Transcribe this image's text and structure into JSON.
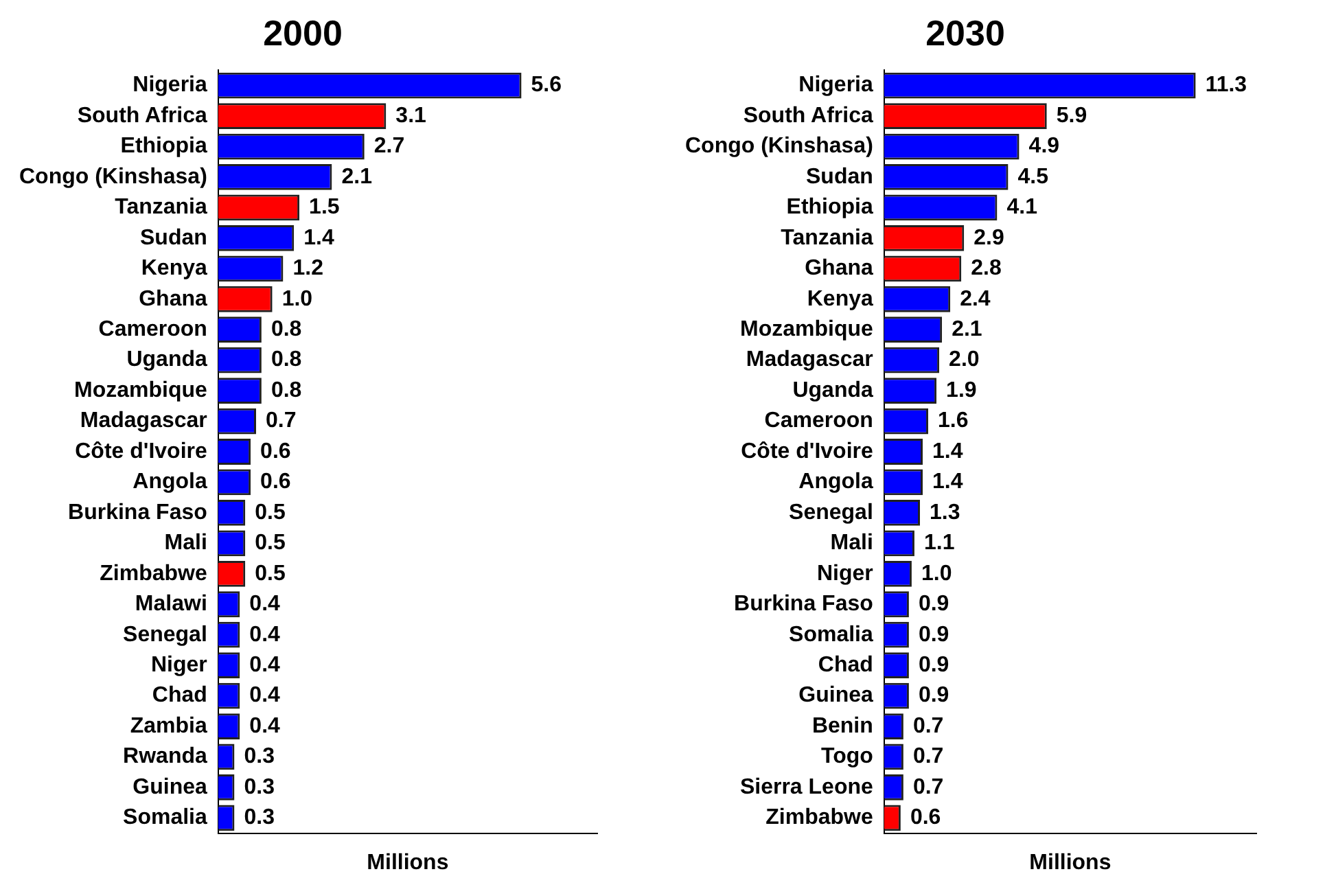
{
  "chart_data": [
    {
      "type": "bar",
      "orientation": "horizontal",
      "title": "2000",
      "xlabel": "Millions",
      "tick_labels": "y",
      "grid": false,
      "legend": false,
      "xlim": [
        0,
        7
      ],
      "categories": [
        "Nigeria",
        "South Africa",
        "Ethiopia",
        "Congo (Kinshasa)",
        "Tanzania",
        "Sudan",
        "Kenya",
        "Ghana",
        "Cameroon",
        "Uganda",
        "Mozambique",
        "Madagascar",
        "Côte d'Ivoire",
        "Angola",
        "Burkina Faso",
        "Mali",
        "Zimbabwe",
        "Malawi",
        "Senegal",
        "Niger",
        "Chad",
        "Zambia",
        "Rwanda",
        "Guinea",
        "Somalia"
      ],
      "values": [
        5.6,
        3.1,
        2.7,
        2.1,
        1.5,
        1.4,
        1.2,
        1.0,
        0.8,
        0.8,
        0.8,
        0.7,
        0.6,
        0.6,
        0.5,
        0.5,
        0.5,
        0.4,
        0.4,
        0.4,
        0.4,
        0.4,
        0.3,
        0.3,
        0.3
      ],
      "value_labels": [
        "5.6",
        "3.1",
        "2.7",
        "2.1",
        "1.5",
        "1.4",
        "1.2",
        "1.0",
        "0.8",
        "0.8",
        "0.8",
        "0.7",
        "0.6",
        "0.6",
        "0.5",
        "0.5",
        "0.5",
        "0.4",
        "0.4",
        "0.4",
        "0.4",
        "0.4",
        "0.3",
        "0.3",
        "0.3"
      ],
      "colors": [
        "#0000ff",
        "#ff0000",
        "#0000ff",
        "#0000ff",
        "#ff0000",
        "#0000ff",
        "#0000ff",
        "#ff0000",
        "#0000ff",
        "#0000ff",
        "#0000ff",
        "#0000ff",
        "#0000ff",
        "#0000ff",
        "#0000ff",
        "#0000ff",
        "#ff0000",
        "#0000ff",
        "#0000ff",
        "#0000ff",
        "#0000ff",
        "#0000ff",
        "#0000ff",
        "#0000ff",
        "#0000ff"
      ]
    },
    {
      "type": "bar",
      "orientation": "horizontal",
      "title": "2030",
      "xlabel": "Millions",
      "tick_labels": "y",
      "grid": false,
      "legend": false,
      "xlim": [
        0,
        13.5
      ],
      "categories": [
        "Nigeria",
        "South Africa",
        "Congo (Kinshasa)",
        "Sudan",
        "Ethiopia",
        "Tanzania",
        "Ghana",
        "Kenya",
        "Mozambique",
        "Madagascar",
        "Uganda",
        "Cameroon",
        "Côte d'Ivoire",
        "Angola",
        "Senegal",
        "Mali",
        "Niger",
        "Burkina Faso",
        "Somalia",
        "Chad",
        "Guinea",
        "Benin",
        "Togo",
        "Sierra Leone",
        "Zimbabwe"
      ],
      "values": [
        11.3,
        5.9,
        4.9,
        4.5,
        4.1,
        2.9,
        2.8,
        2.4,
        2.1,
        2.0,
        1.9,
        1.6,
        1.4,
        1.4,
        1.3,
        1.1,
        1.0,
        0.9,
        0.9,
        0.9,
        0.9,
        0.7,
        0.7,
        0.7,
        0.6
      ],
      "value_labels": [
        "11.3",
        "5.9",
        "4.9",
        "4.5",
        "4.1",
        "2.9",
        "2.8",
        "2.4",
        "2.1",
        "2.0",
        "1.9",
        "1.6",
        "1.4",
        "1.4",
        "1.3",
        "1.1",
        "1.0",
        "0.9",
        "0.9",
        "0.9",
        "0.9",
        "0.7",
        "0.7",
        "0.7",
        "0.6"
      ],
      "colors": [
        "#0000ff",
        "#ff0000",
        "#0000ff",
        "#0000ff",
        "#0000ff",
        "#ff0000",
        "#ff0000",
        "#0000ff",
        "#0000ff",
        "#0000ff",
        "#0000ff",
        "#0000ff",
        "#0000ff",
        "#0000ff",
        "#0000ff",
        "#0000ff",
        "#0000ff",
        "#0000ff",
        "#0000ff",
        "#0000ff",
        "#0000ff",
        "#0000ff",
        "#0000ff",
        "#0000ff",
        "#ff0000"
      ]
    }
  ]
}
